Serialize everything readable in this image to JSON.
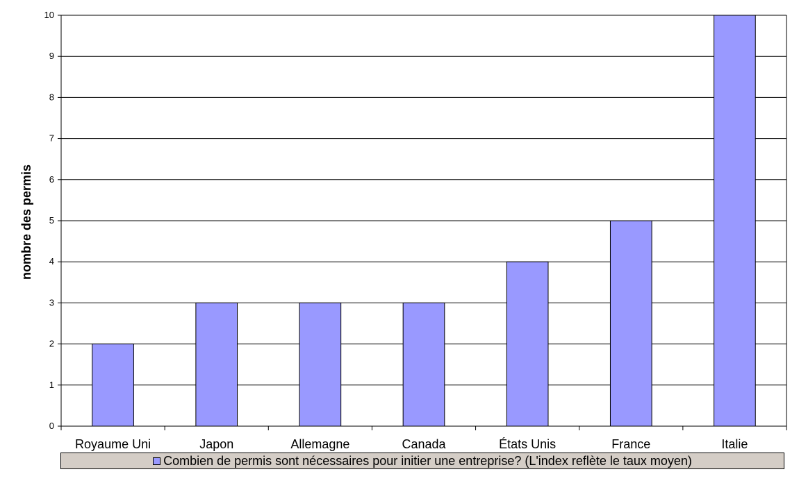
{
  "chart_data": {
    "type": "bar",
    "categories": [
      "Royaume Uni",
      "Japon",
      "Allemagne",
      "Canada",
      "États Unis",
      "France",
      "Italie"
    ],
    "series": [
      {
        "name": "Combien de permis sont nécessaires pour initier une entreprise? (L'index reflète le taux moyen)",
        "values": [
          2,
          3,
          3,
          3,
          4,
          5,
          10
        ],
        "color": "#9999ff"
      }
    ],
    "title": "",
    "xlabel": "",
    "ylabel": "nombre des permis",
    "ylim": [
      0,
      10
    ],
    "yticks": [
      "0",
      "1",
      "2",
      "3",
      "4",
      "5",
      "6",
      "7",
      "8",
      "9",
      "10"
    ],
    "grid": true,
    "legend_position": "bottom"
  }
}
